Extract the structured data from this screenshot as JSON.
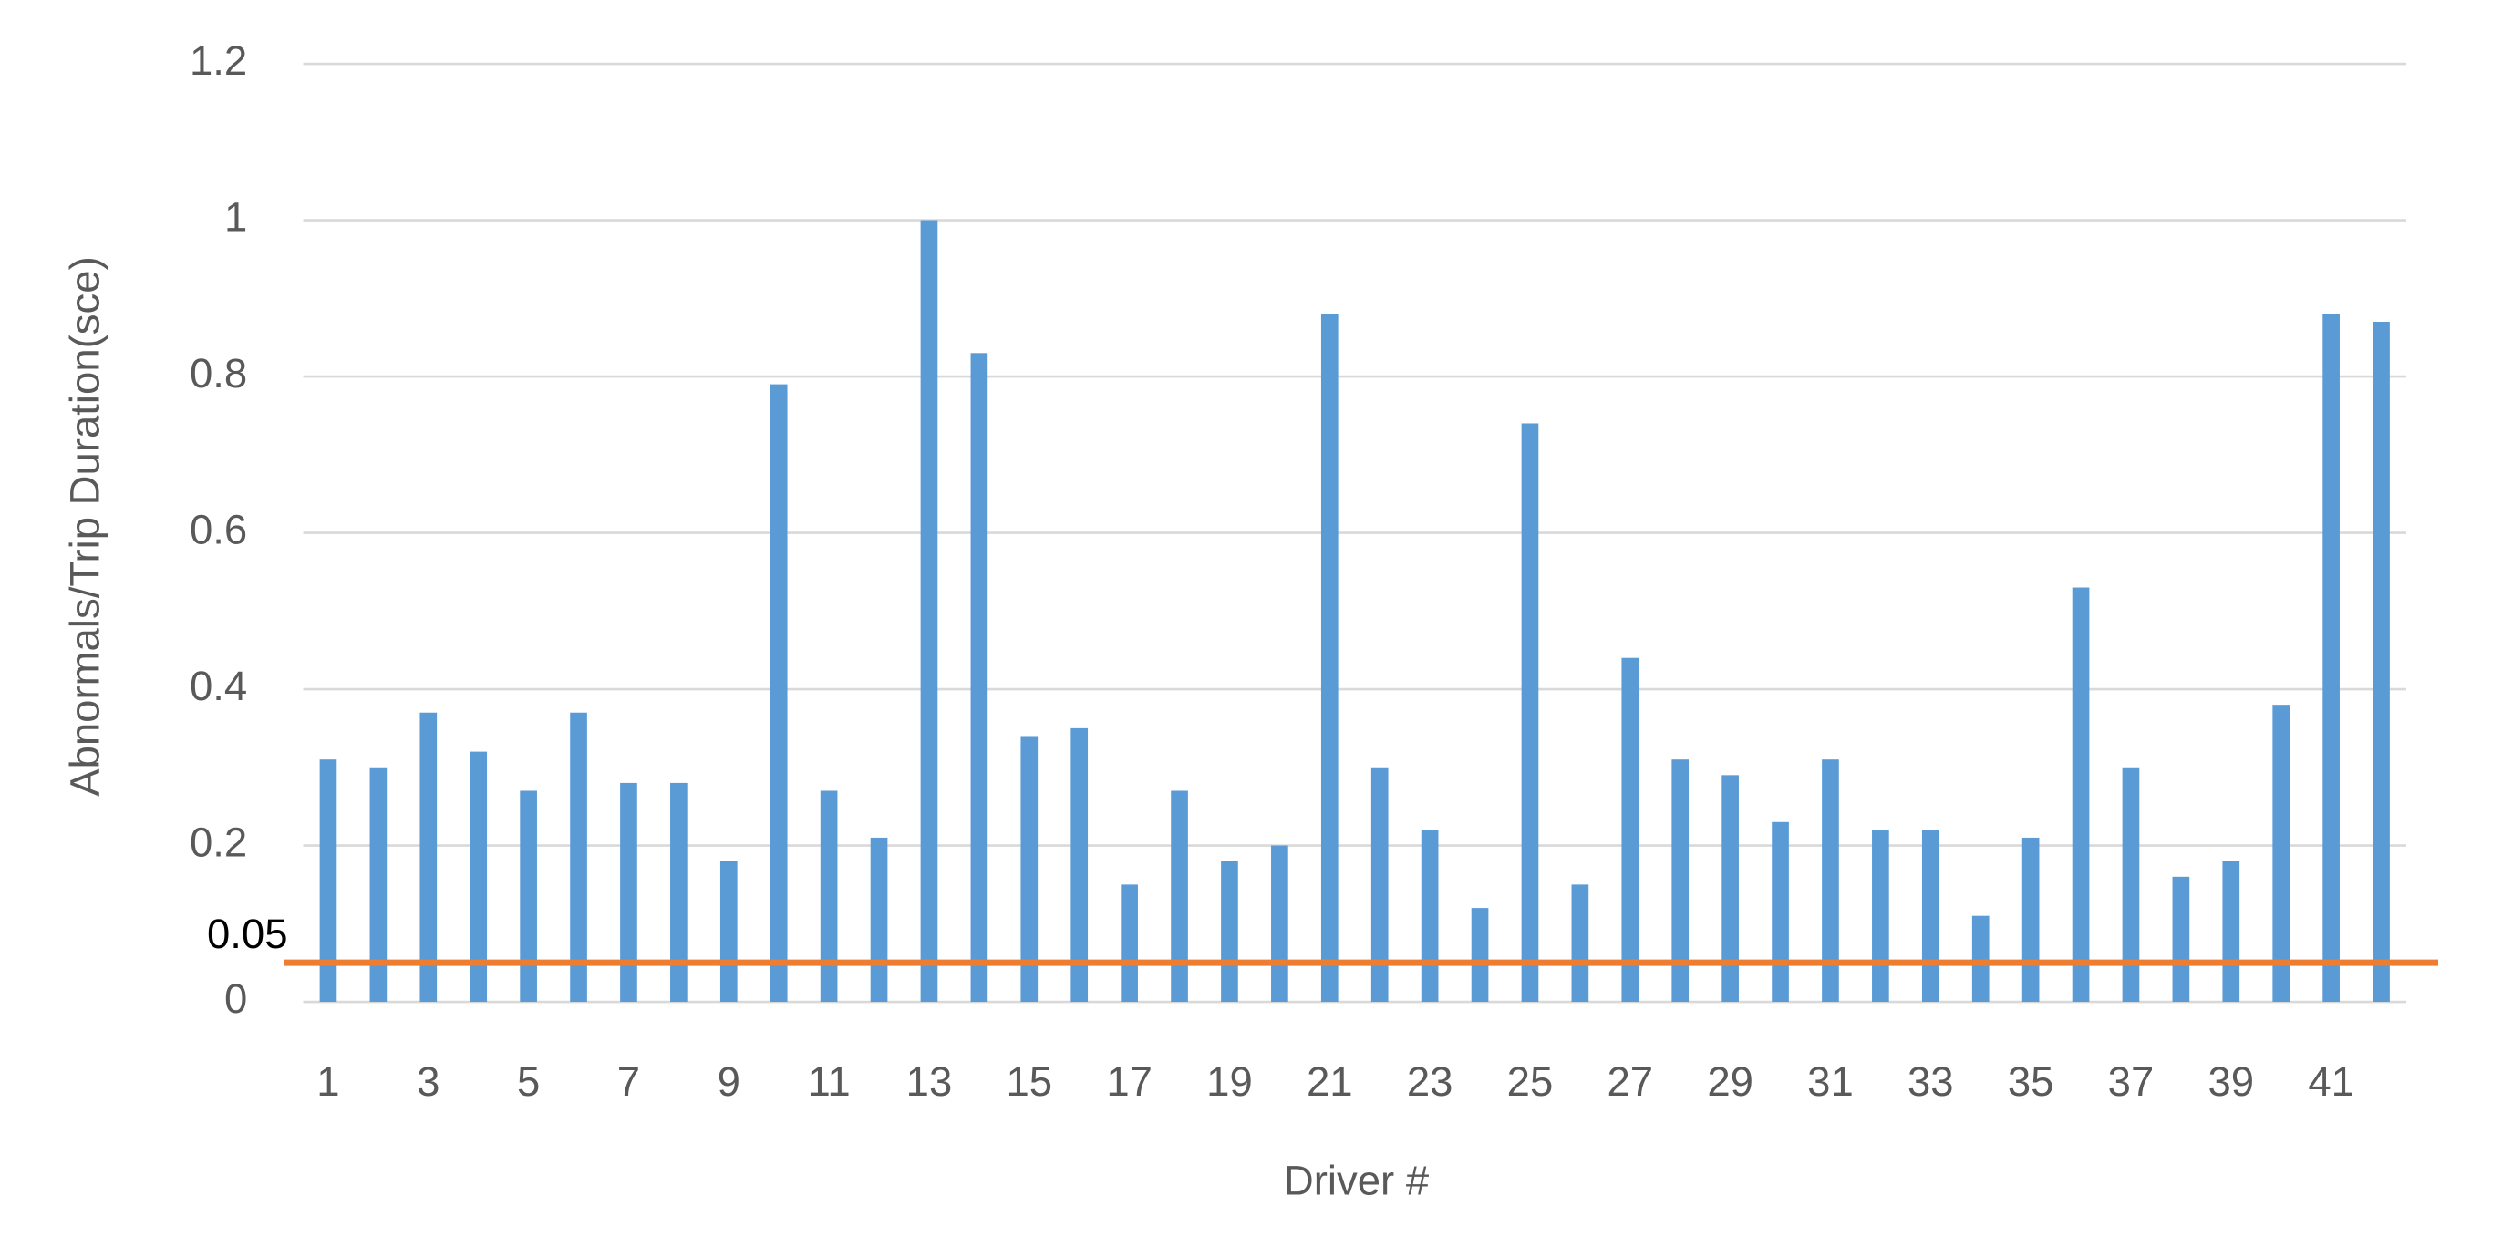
{
  "chart_data": {
    "type": "bar",
    "x_label": "Driver #",
    "y_label": "Abnormals/Trip Duration(sce)",
    "categories": [
      1,
      null,
      3,
      null,
      5,
      null,
      7,
      null,
      9,
      null,
      11,
      null,
      13,
      null,
      15,
      null,
      17,
      null,
      19,
      null,
      21,
      null,
      23,
      null,
      25,
      null,
      27,
      null,
      29,
      null,
      31,
      null,
      33,
      null,
      35,
      null,
      37,
      null,
      39,
      null,
      41,
      null
    ],
    "values": [
      0.31,
      0.3,
      0.37,
      0.32,
      0.27,
      0.37,
      0.28,
      0.28,
      0.18,
      0.79,
      0.27,
      0.21,
      1.0,
      0.83,
      0.34,
      0.35,
      0.15,
      0.27,
      0.18,
      0.2,
      0.88,
      0.3,
      0.22,
      0.12,
      0.74,
      0.15,
      0.44,
      0.31,
      0.29,
      0.23,
      0.31,
      0.22,
      0.22,
      0.11,
      0.21,
      0.53,
      0.3,
      0.16,
      0.18,
      0.38,
      0.88,
      0.87
    ],
    "color": "#5b9bd5",
    "ylim": [
      0,
      1.2
    ],
    "yticks": [
      0,
      0.2,
      0.4,
      0.6,
      0.8,
      1,
      1.2
    ],
    "grid": true,
    "reference_line": {
      "value": 0.05,
      "label": "0.05",
      "color": "#ed7d31"
    }
  }
}
